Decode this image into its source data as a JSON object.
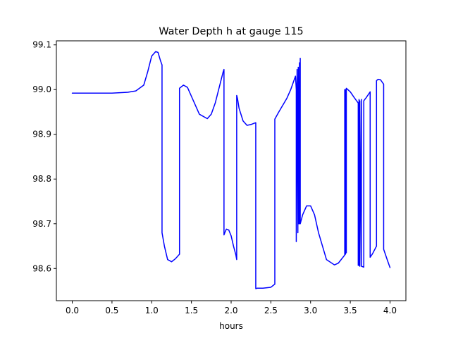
{
  "chart_data": {
    "type": "line",
    "title": "Water Depth h at gauge 115",
    "xlabel": "hours",
    "ylabel": "",
    "xlim": [
      -0.2,
      4.2
    ],
    "ylim": [
      98.528,
      99.109
    ],
    "xticks": [
      0.0,
      0.5,
      1.0,
      1.5,
      2.0,
      2.5,
      3.0,
      3.5,
      4.0
    ],
    "xtick_labels": [
      "0.0",
      "0.5",
      "1.0",
      "1.5",
      "2.0",
      "2.5",
      "3.0",
      "3.5",
      "4.0"
    ],
    "yticks": [
      98.6,
      98.7,
      98.8,
      98.9,
      99.0,
      99.1
    ],
    "ytick_labels": [
      "98.6",
      "98.7",
      "98.8",
      "98.9",
      "99.0",
      "99.1"
    ],
    "grid": false,
    "legend": "none",
    "series": [
      {
        "color": "#0000ff",
        "x": [
          0.0,
          0.3,
          0.5,
          0.7,
          0.8,
          0.9,
          0.95,
          1.0,
          1.05,
          1.08,
          1.11,
          1.13,
          1.13,
          1.16,
          1.2,
          1.25,
          1.3,
          1.35,
          1.35,
          1.4,
          1.45,
          1.5,
          1.6,
          1.7,
          1.75,
          1.8,
          1.85,
          1.9,
          1.91,
          1.91,
          1.92,
          1.94,
          1.97,
          2.0,
          2.03,
          2.06,
          2.07,
          2.07,
          2.08,
          2.1,
          2.15,
          2.2,
          2.25,
          2.31,
          2.31,
          2.33,
          2.4,
          2.45,
          2.5,
          2.55,
          2.55,
          2.6,
          2.7,
          2.75,
          2.81,
          2.82,
          2.82,
          2.83,
          2.84,
          2.845,
          2.85,
          2.86,
          2.86,
          2.87,
          2.87,
          2.9,
          2.95,
          3.0,
          3.05,
          3.1,
          3.2,
          3.3,
          3.35,
          3.43,
          3.43,
          3.44,
          3.44,
          3.45,
          3.45,
          3.5,
          3.55,
          3.6,
          3.6,
          3.61,
          3.61,
          3.62,
          3.62,
          3.64,
          3.64,
          3.67,
          3.67,
          3.7,
          3.75,
          3.75,
          3.78,
          3.83,
          3.83,
          3.85,
          3.88,
          3.92,
          3.92,
          3.97,
          4.0
        ],
        "y": [
          98.992,
          98.992,
          98.992,
          98.994,
          98.997,
          99.01,
          99.04,
          99.075,
          99.085,
          99.083,
          99.065,
          99.055,
          98.68,
          98.65,
          98.62,
          98.615,
          98.622,
          98.632,
          99.003,
          99.01,
          99.005,
          98.985,
          98.945,
          98.935,
          98.945,
          98.97,
          99.005,
          99.04,
          99.045,
          98.675,
          98.68,
          98.688,
          98.686,
          98.673,
          98.65,
          98.63,
          98.62,
          98.987,
          98.98,
          98.958,
          98.93,
          98.92,
          98.922,
          98.926,
          98.555,
          98.556,
          98.556,
          98.557,
          98.558,
          98.565,
          98.934,
          98.95,
          98.98,
          99.0,
          99.03,
          99.0,
          98.66,
          99.045,
          98.68,
          99.05,
          98.7,
          99.06,
          98.7,
          99.07,
          98.7,
          98.72,
          98.74,
          98.74,
          98.72,
          98.68,
          98.62,
          98.608,
          98.612,
          98.63,
          99.0,
          98.632,
          99.0,
          98.635,
          99.003,
          98.995,
          98.982,
          98.97,
          98.607,
          98.978,
          98.607,
          98.975,
          98.605,
          98.978,
          98.605,
          98.603,
          98.975,
          98.982,
          98.995,
          98.625,
          98.633,
          98.65,
          99.02,
          99.023,
          99.022,
          99.012,
          98.643,
          98.617,
          98.602
        ]
      }
    ]
  }
}
